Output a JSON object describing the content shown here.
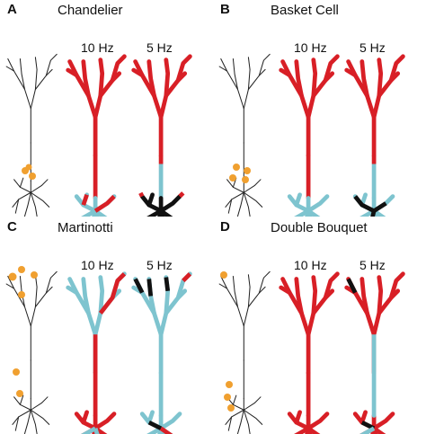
{
  "colors": {
    "depolarized": "#d81f26",
    "mid": "#7ec4cf",
    "low": "#111111",
    "synapse": "#f0a030",
    "morph": "#222222"
  },
  "panels": [
    {
      "letter": "A",
      "title": "Chandelier",
      "freq_10": "10 Hz",
      "freq_5": "5 Hz"
    },
    {
      "letter": "B",
      "title": "Basket Cell",
      "freq_10": "10 Hz",
      "freq_5": "5 Hz"
    },
    {
      "letter": "C",
      "title": "Martinotti",
      "freq_10": "10 Hz",
      "freq_5": "5 Hz"
    },
    {
      "letter": "D",
      "title": "Double Bouquet",
      "freq_10": "10 Hz",
      "freq_5": "5 Hz"
    }
  ]
}
